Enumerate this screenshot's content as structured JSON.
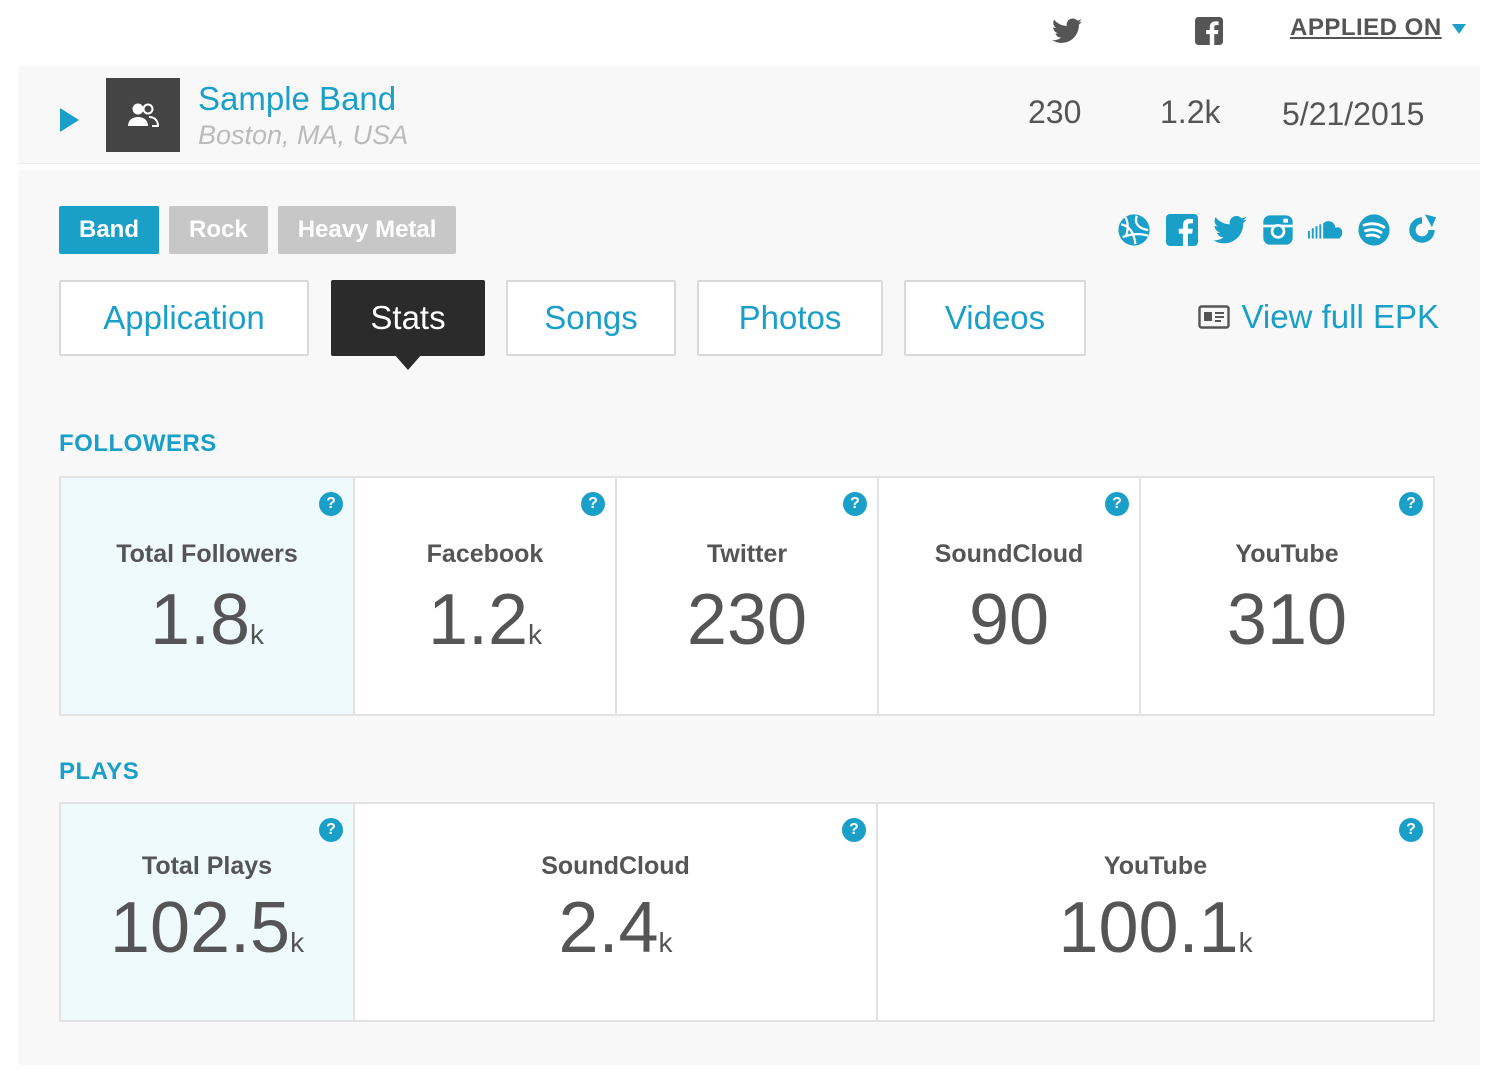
{
  "columns": {
    "twitter_icon": "twitter-icon",
    "facebook_icon": "facebook-icon",
    "sort_label": "APPLIED ON"
  },
  "band": {
    "name": "Sample Band",
    "location": "Boston, MA, USA",
    "twitter_count": "230",
    "facebook_count": "1.2k",
    "applied_on": "5/21/2015"
  },
  "tags": [
    "Band",
    "Rock",
    "Heavy Metal"
  ],
  "social_icons": [
    "website-icon",
    "facebook-icon",
    "twitter-icon",
    "instagram-icon",
    "soundcloud-icon",
    "spotify-icon",
    "reverbnation-icon"
  ],
  "tabs": [
    "Application",
    "Stats",
    "Songs",
    "Photos",
    "Videos"
  ],
  "active_tab": "Stats",
  "epk_link": "View full EPK",
  "followers": {
    "title": "FOLLOWERS",
    "cells": [
      {
        "label": "Total Followers",
        "value": "1.8",
        "unit": "k"
      },
      {
        "label": "Facebook",
        "value": "1.2",
        "unit": "k"
      },
      {
        "label": "Twitter",
        "value": "230",
        "unit": ""
      },
      {
        "label": "SoundCloud",
        "value": "90",
        "unit": ""
      },
      {
        "label": "YouTube",
        "value": "310",
        "unit": ""
      }
    ]
  },
  "plays": {
    "title": "PLAYS",
    "cells": [
      {
        "label": "Total Plays",
        "value": "102.5",
        "unit": "k"
      },
      {
        "label": "SoundCloud",
        "value": "2.4",
        "unit": "k"
      },
      {
        "label": "YouTube",
        "value": "100.1",
        "unit": "k"
      }
    ]
  },
  "help_glyph": "?",
  "colors": {
    "accent": "#1a9fc9",
    "dark": "#2b2b2b",
    "muted_tag": "#c7c7c7",
    "total_bg": "#effafd"
  }
}
